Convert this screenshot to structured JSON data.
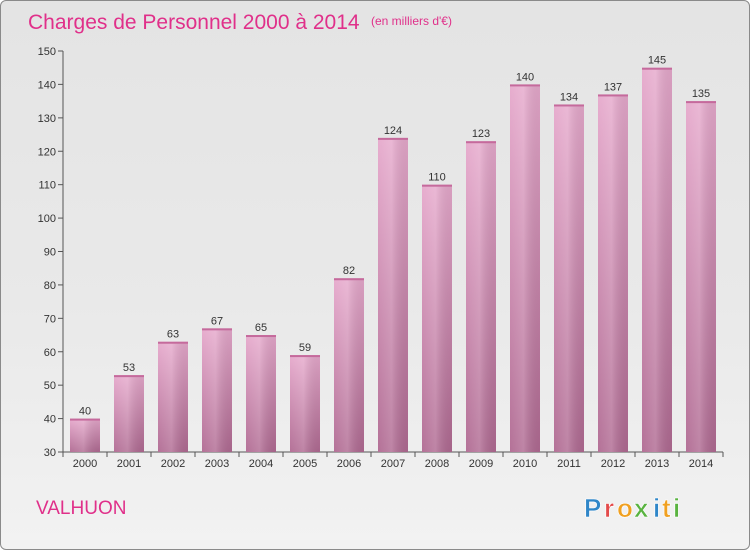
{
  "chart_data": {
    "type": "bar",
    "title": "Charges de Personnel 2000 à 2014",
    "subtitle": "(en milliers d'€)",
    "categories": [
      "2000",
      "2001",
      "2002",
      "2003",
      "2004",
      "2005",
      "2006",
      "2007",
      "2008",
      "2009",
      "2010",
      "2011",
      "2012",
      "2013",
      "2014"
    ],
    "values": [
      40,
      53,
      63,
      67,
      65,
      59,
      82,
      124,
      110,
      123,
      140,
      134,
      137,
      145,
      135
    ],
    "ylim": [
      30,
      150
    ],
    "yticks": [
      30,
      40,
      50,
      60,
      70,
      80,
      90,
      100,
      110,
      120,
      130,
      140,
      150
    ],
    "xlabel": "",
    "ylabel": "",
    "grid": false,
    "legend": "none",
    "bar_color": "#d990b8"
  },
  "commune": "VALHUON",
  "logo": {
    "letters": [
      "P",
      "r",
      "o",
      "x",
      "i",
      "t",
      "i"
    ],
    "colors": [
      "#2f86c8",
      "#e34a4a",
      "#f0a020",
      "#59b340",
      "#2f86c8",
      "#f0a020",
      "#59b340"
    ]
  }
}
